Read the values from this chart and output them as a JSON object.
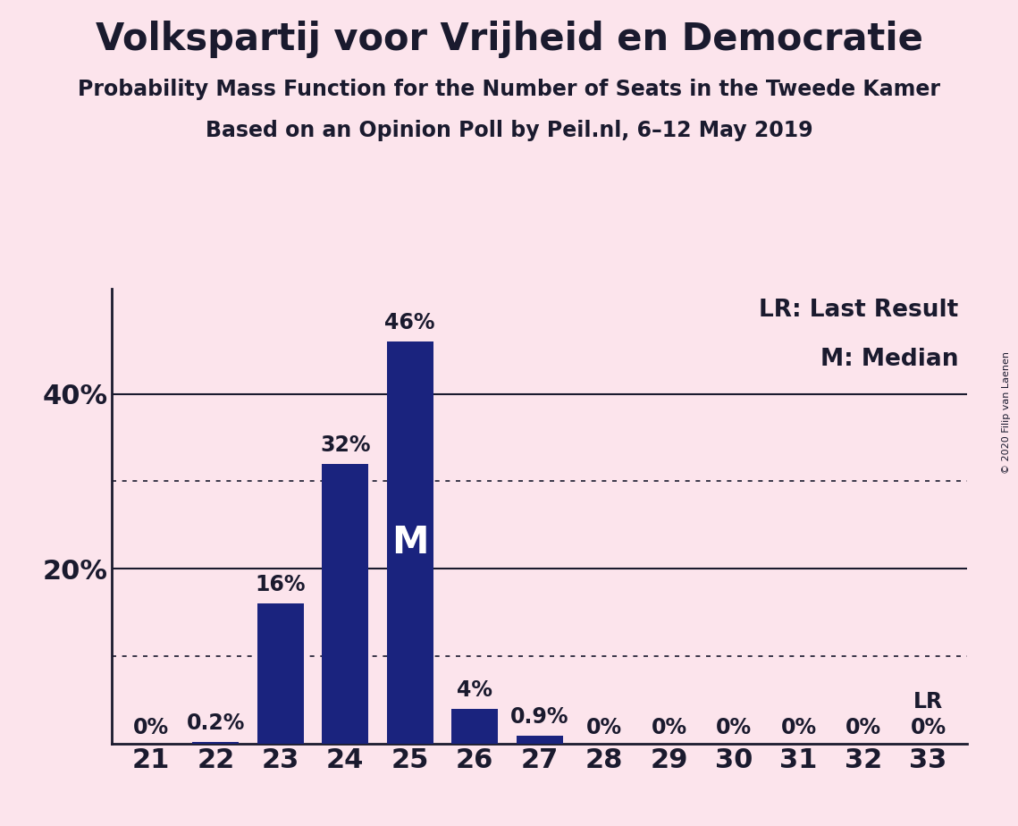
{
  "title": "Volkspartij voor Vrijheid en Democratie",
  "subtitle1": "Probability Mass Function for the Number of Seats in the Tweede Kamer",
  "subtitle2": "Based on an Opinion Poll by Peil.nl, 6–12 May 2019",
  "copyright": "© 2020 Filip van Laenen",
  "categories": [
    21,
    22,
    23,
    24,
    25,
    26,
    27,
    28,
    29,
    30,
    31,
    32,
    33
  ],
  "values": [
    0.0,
    0.2,
    16.0,
    32.0,
    46.0,
    4.0,
    0.9,
    0.0,
    0.0,
    0.0,
    0.0,
    0.0,
    0.0
  ],
  "bar_labels": [
    "0%",
    "0.2%",
    "16%",
    "32%",
    "46%",
    "4%",
    "0.9%",
    "0%",
    "0%",
    "0%",
    "0%",
    "0%",
    "0%"
  ],
  "bar_color": "#1a237e",
  "background_color": "#fce4ec",
  "text_color": "#1a1a2e",
  "median_seat": 25,
  "median_label": "M",
  "lr_seat": 33,
  "lr_label": "LR",
  "lr_note": "LR: Last Result",
  "m_note": "M: Median",
  "yticks": [
    20,
    40
  ],
  "ytick_labels": [
    "20%",
    "40%"
  ],
  "ylim": [
    0,
    52
  ],
  "dotted_lines": [
    10,
    30
  ],
  "solid_lines": [
    20,
    40
  ],
  "title_fontsize": 30,
  "subtitle_fontsize": 17,
  "tick_fontsize": 22,
  "note_fontsize": 19,
  "bar_label_fontsize": 17
}
